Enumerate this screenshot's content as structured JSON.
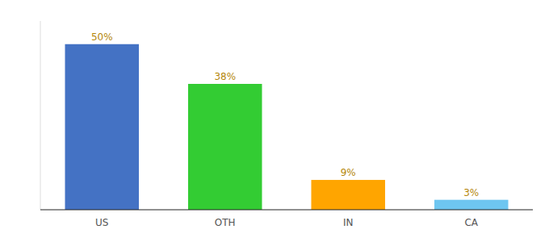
{
  "chart_data": {
    "type": "bar",
    "categories": [
      "US",
      "OTH",
      "IN",
      "CA"
    ],
    "values": [
      50,
      38,
      9,
      3
    ],
    "value_labels": [
      "50%",
      "38%",
      "9%",
      "3%"
    ],
    "colors": [
      "#4472c4",
      "#33cc33",
      "#ffa500",
      "#6ec6f0"
    ],
    "ylim": [
      0,
      57
    ],
    "data_labels": true,
    "tick_labels": "x"
  }
}
